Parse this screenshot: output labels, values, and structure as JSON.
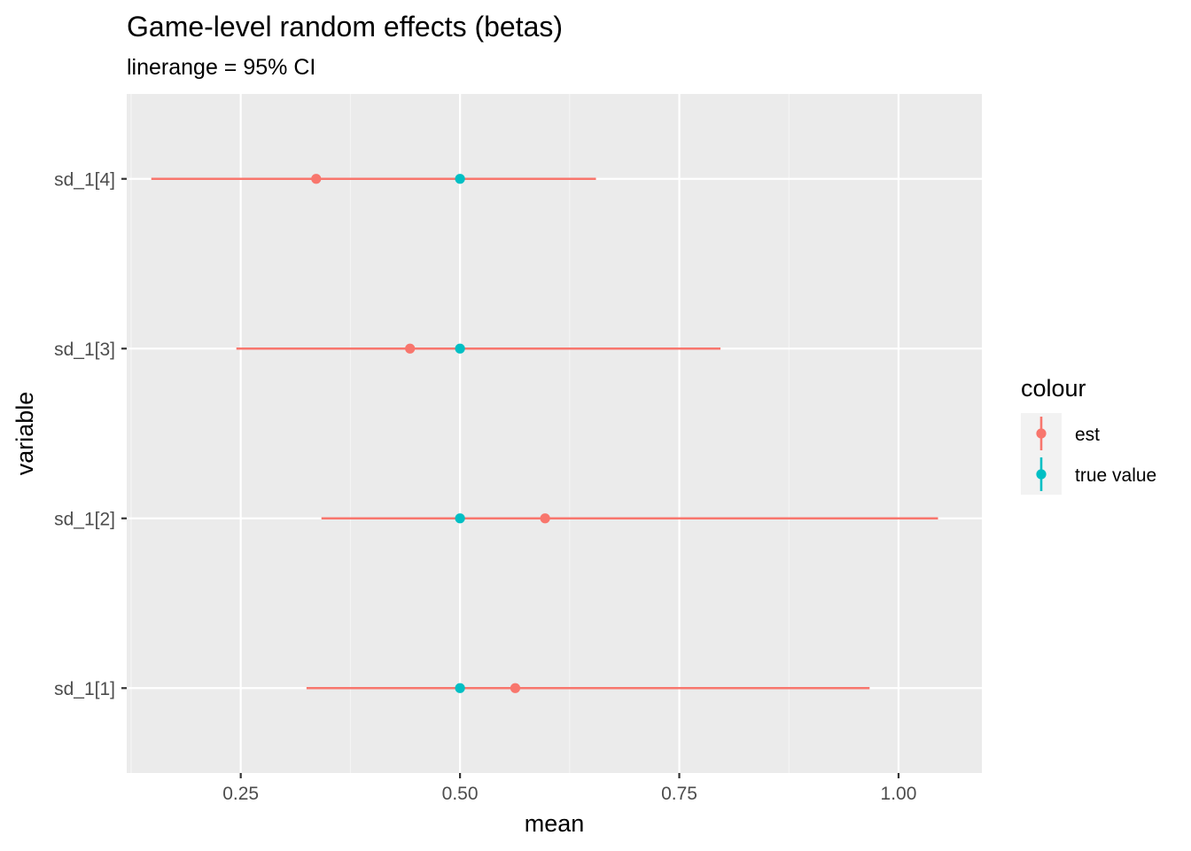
{
  "chart_data": {
    "type": "pointrange",
    "title": "Game-level random effects (betas)",
    "subtitle": "linerange = 95% CI",
    "xlabel": "mean",
    "ylabel": "variable",
    "xlim": [
      0.12,
      1.095
    ],
    "x_ticks": [
      0.25,
      0.5,
      0.75,
      1.0
    ],
    "x_tick_labels": [
      "0.25",
      "0.50",
      "0.75",
      "1.00"
    ],
    "x_minor_ticks": [
      0.125,
      0.375,
      0.625,
      0.875
    ],
    "categories": [
      "sd_1[1]",
      "sd_1[2]",
      "sd_1[3]",
      "sd_1[4]"
    ],
    "grid": true,
    "legend": {
      "title": "colour",
      "placement": "right",
      "entries": [
        {
          "label": "est",
          "color": "#F8766D"
        },
        {
          "label": "true value",
          "color": "#00BFC4"
        }
      ]
    },
    "series": [
      {
        "name": "est",
        "color": "#F8766D",
        "points": [
          {
            "category": "sd_1[1]",
            "mean": 0.563,
            "lower": 0.325,
            "upper": 0.967
          },
          {
            "category": "sd_1[2]",
            "mean": 0.597,
            "lower": 0.342,
            "upper": 1.045
          },
          {
            "category": "sd_1[3]",
            "mean": 0.443,
            "lower": 0.245,
            "upper": 0.797
          },
          {
            "category": "sd_1[4]",
            "mean": 0.336,
            "lower": 0.148,
            "upper": 0.655
          }
        ]
      },
      {
        "name": "true value",
        "color": "#00BFC4",
        "points": [
          {
            "category": "sd_1[1]",
            "mean": 0.5,
            "lower": 0.5,
            "upper": 0.5
          },
          {
            "category": "sd_1[2]",
            "mean": 0.5,
            "lower": 0.5,
            "upper": 0.5
          },
          {
            "category": "sd_1[3]",
            "mean": 0.5,
            "lower": 0.5,
            "upper": 0.5
          },
          {
            "category": "sd_1[4]",
            "mean": 0.5,
            "lower": 0.5,
            "upper": 0.5
          }
        ]
      }
    ]
  },
  "colors": {
    "panel_background": "#EBEBEB",
    "grid_major": "#FFFFFF",
    "grid_minor": "#F5F5F5",
    "tick_text": "#4D4D4D",
    "legend_key_background": "#F2F2F2"
  }
}
